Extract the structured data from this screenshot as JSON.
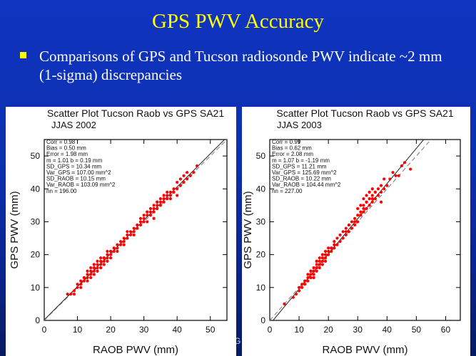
{
  "slide": {
    "title": "GPS PWV Accuracy",
    "bullet": "Comparisons of GPS and Tucson radiosonde PWV indicate ~2 mm (1-sigma) discrepancies",
    "footer": "VG"
  },
  "chart_data": [
    {
      "type": "scatter",
      "title": "Scatter Plot Tucson Raob vs GPS SA21",
      "subtitle": "JJAS 2002",
      "xlabel": "RAOB PWV (mm)",
      "ylabel": "GPS PWV (mm)",
      "xlim": [
        0,
        55
      ],
      "ylim": [
        0,
        55
      ],
      "xticks": [
        0,
        10,
        20,
        30,
        40,
        50
      ],
      "yticks": [
        0,
        10,
        20,
        30,
        40,
        50
      ],
      "grid": false,
      "marker_color": "#ff0000",
      "stats": [
        "Corr = 0.98",
        "Bias = 0.50 mm",
        "Error = 1.98 mm",
        "m = 1.01        b = 0.19 mm",
        "SD_GPS = 10.34 mm",
        "Var_GPS = 107.00 mm^2",
        "SD_RAOB = 10.15 mm",
        "Var_RAOB = 103.09 mm^2",
        "nn = 196.00"
      ],
      "lines": [
        {
          "style": "solid",
          "slope": 1.01,
          "intercept": 0.19
        },
        {
          "style": "dashed",
          "slope": 1.0,
          "intercept": 0.0
        }
      ],
      "points": {
        "x": [
          7,
          8,
          9,
          10,
          10,
          11,
          11,
          12,
          12,
          12,
          13,
          13,
          13,
          14,
          14,
          14,
          14,
          15,
          15,
          15,
          15,
          16,
          16,
          16,
          16,
          17,
          17,
          17,
          17,
          18,
          18,
          18,
          19,
          19,
          19,
          20,
          20,
          20,
          21,
          21,
          22,
          22,
          22,
          23,
          23,
          24,
          24,
          25,
          25,
          26,
          26,
          27,
          27,
          27,
          28,
          28,
          29,
          29,
          29,
          30,
          30,
          30,
          31,
          31,
          31,
          32,
          32,
          32,
          33,
          33,
          33,
          34,
          34,
          34,
          35,
          35,
          35,
          36,
          36,
          36,
          37,
          37,
          38,
          38,
          38,
          39,
          39,
          40,
          40,
          41,
          41,
          42,
          42,
          43,
          43,
          44,
          45,
          46,
          11,
          13,
          16,
          18,
          20,
          24,
          28,
          31,
          34,
          37,
          40,
          9,
          15,
          19,
          25,
          33,
          36
        ],
        "y": [
          8,
          8,
          9,
          10,
          11,
          11,
          12,
          12,
          13,
          13,
          14,
          13,
          15,
          14,
          15,
          16,
          13,
          15,
          16,
          17,
          14,
          16,
          17,
          18,
          15,
          17,
          18,
          16,
          19,
          18,
          19,
          17,
          19,
          20,
          18,
          20,
          21,
          19,
          21,
          22,
          22,
          23,
          21,
          23,
          24,
          24,
          25,
          25,
          26,
          27,
          26,
          28,
          27,
          26,
          29,
          28,
          30,
          29,
          31,
          30,
          32,
          31,
          32,
          33,
          30,
          33,
          34,
          32,
          34,
          35,
          33,
          35,
          36,
          34,
          36,
          37,
          35,
          37,
          38,
          36,
          38,
          37,
          38,
          39,
          37,
          40,
          39,
          40,
          42,
          41,
          43,
          42,
          44,
          43,
          45,
          44,
          45,
          47,
          10,
          12,
          15,
          19,
          21,
          23,
          29,
          33,
          36,
          39,
          38,
          8,
          17,
          21,
          27,
          31,
          38
        ]
      }
    },
    {
      "type": "scatter",
      "title": "Scatter Plot Tucson Raob vs GPS SA21",
      "subtitle": "JJAS 2003",
      "xlabel": "RAOB PWV (mm)",
      "ylabel": "GPS PWV (mm)",
      "xlim": [
        0,
        65
      ],
      "ylim": [
        0,
        55
      ],
      "xticks": [
        0,
        10,
        20,
        30,
        40,
        50,
        60
      ],
      "yticks": [
        0,
        10,
        20,
        30,
        40,
        50
      ],
      "grid": false,
      "marker_color": "#ff0000",
      "stats": [
        "Corr = 0.99",
        "Bias = 0.62 mm",
        "Error = 2.08 mm",
        "m = 1.07        b = -1.19 mm",
        "SD_GPS = 11.21 mm",
        "Var_GPS = 125.69 mm^2",
        "SD_RAOB = 10.22 mm",
        "Var_RAOB = 104.44 mm^2",
        "nn = 227.00"
      ],
      "lines": [
        {
          "style": "solid",
          "slope": 1.07,
          "intercept": -1.19
        },
        {
          "style": "dashed",
          "slope": 1.0,
          "intercept": 0.0
        }
      ],
      "points": {
        "x": [
          5,
          8,
          9,
          10,
          10,
          11,
          11,
          12,
          12,
          13,
          13,
          13,
          14,
          14,
          14,
          15,
          15,
          15,
          15,
          16,
          16,
          16,
          16,
          17,
          17,
          17,
          17,
          18,
          18,
          18,
          18,
          19,
          19,
          19,
          20,
          20,
          20,
          21,
          21,
          22,
          22,
          23,
          23,
          24,
          24,
          25,
          25,
          26,
          26,
          27,
          27,
          28,
          28,
          29,
          29,
          30,
          30,
          30,
          31,
          31,
          31,
          32,
          32,
          32,
          33,
          33,
          33,
          34,
          34,
          34,
          35,
          35,
          35,
          36,
          36,
          37,
          37,
          38,
          38,
          39,
          39,
          40,
          41,
          42,
          43,
          45,
          46,
          12,
          14,
          17,
          19,
          22,
          26,
          29,
          32,
          35,
          38,
          10,
          16,
          21,
          27,
          33,
          36,
          44,
          48
        ],
        "y": [
          5,
          7,
          8,
          9,
          10,
          10,
          11,
          11,
          12,
          12,
          13,
          14,
          13,
          14,
          15,
          14,
          15,
          16,
          13,
          16,
          17,
          15,
          18,
          17,
          18,
          16,
          19,
          18,
          19,
          17,
          20,
          19,
          20,
          18,
          20,
          21,
          22,
          21,
          22,
          22,
          24,
          23,
          25,
          24,
          26,
          25,
          27,
          26,
          28,
          27,
          29,
          28,
          30,
          29,
          31,
          30,
          32,
          34,
          32,
          33,
          35,
          33,
          35,
          37,
          34,
          36,
          38,
          35,
          37,
          39,
          36,
          38,
          40,
          37,
          39,
          38,
          40,
          39,
          41,
          40,
          43,
          41,
          43,
          45,
          44,
          47,
          48,
          12,
          15,
          17,
          21,
          23,
          27,
          30,
          34,
          37,
          36,
          9,
          18,
          22,
          29,
          36,
          39,
          44,
          46
        ]
      }
    }
  ]
}
